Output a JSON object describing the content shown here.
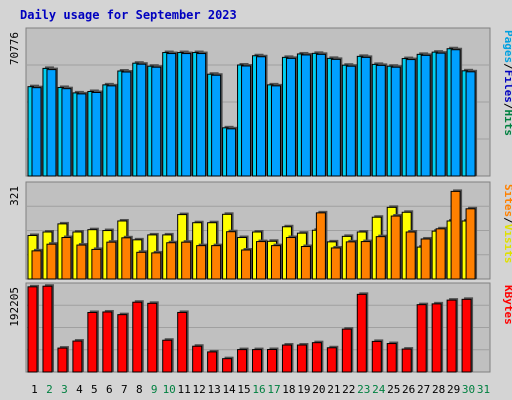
{
  "chart_data": [
    {
      "panel": "pages_files_hits",
      "type": "bar",
      "title": "Daily usage for September 2023",
      "ylabel_max": "70776",
      "side_label": [
        "Pages",
        "/",
        "Files",
        "/",
        "Hits"
      ],
      "side_colors": [
        "#00a0e0",
        "#000000",
        "#0000c0",
        "#000000",
        "#008040"
      ],
      "ylim": [
        0,
        70776
      ],
      "categories": [
        "1",
        "2",
        "3",
        "4",
        "5",
        "6",
        "7",
        "8",
        "9",
        "10",
        "11",
        "12",
        "13",
        "14",
        "15",
        "16",
        "17",
        "18",
        "19",
        "20",
        "21",
        "22",
        "23",
        "24",
        "25",
        "26",
        "27",
        "28",
        "29",
        "30",
        "31"
      ],
      "series": [
        {
          "key": "hits",
          "color": "#00d0f0",
          "values": [
            44500,
            53600,
            44100,
            41400,
            42100,
            45400,
            52300,
            56200,
            54700,
            61500,
            61500,
            61500,
            50700,
            24000,
            55300,
            59900,
            45400,
            59100,
            60800,
            61100,
            58600,
            55200,
            59600,
            55600,
            54700,
            58500,
            60600,
            61700,
            63400,
            52400,
            null
          ]
        },
        {
          "key": "files",
          "color": "#00a0ff",
          "values": [
            44000,
            53000,
            43500,
            40900,
            41600,
            44900,
            51800,
            55700,
            54200,
            61000,
            61000,
            61000,
            50200,
            23500,
            54800,
            59400,
            44900,
            58600,
            60300,
            60600,
            58100,
            54700,
            59100,
            55100,
            54200,
            58000,
            60100,
            61200,
            62900,
            51900,
            null
          ]
        }
      ]
    },
    {
      "panel": "sites_visits",
      "type": "bar",
      "ylabel_max": "321",
      "side_label": [
        "Sites",
        "/",
        "Visits"
      ],
      "side_colors": [
        "#ff8000",
        "#000000",
        "#e0e000"
      ],
      "ylim": [
        0,
        321
      ],
      "series": [
        {
          "key": "visits",
          "color": "#ffff00",
          "values": [
            150,
            162,
            190,
            162,
            170,
            167,
            200,
            135,
            152,
            152,
            222,
            194,
            194,
            223,
            143,
            162,
            130,
            180,
            158,
            168,
            128,
            147,
            162,
            213,
            247,
            230,
            110,
            165,
            200,
            200,
            null
          ]
        },
        {
          "key": "sites",
          "color": "#ff8000",
          "values": [
            97,
            120,
            143,
            117,
            102,
            127,
            142,
            92,
            90,
            125,
            127,
            115,
            115,
            163,
            100,
            129,
            115,
            143,
            112,
            228,
            107,
            128,
            129,
            146,
            217,
            162,
            138,
            173,
            302,
            242,
            null
          ]
        }
      ]
    },
    {
      "panel": "kbytes",
      "type": "bar",
      "ylabel_max": "192205",
      "side_label": [
        "KBytes"
      ],
      "side_colors": [
        "#ff0000"
      ],
      "ylim": [
        0,
        192205
      ],
      "series": [
        {
          "key": "kbytes",
          "color": "#ff0000",
          "values": [
            191600,
            193000,
            53800,
            69600,
            133900,
            135000,
            129000,
            157000,
            154500,
            71500,
            134000,
            58000,
            45200,
            30000,
            50400,
            50400,
            50600,
            60700,
            60700,
            66000,
            54500,
            96500,
            174700,
            68800,
            64000,
            51600,
            151500,
            153300,
            161700,
            163500,
            null
          ]
        }
      ]
    }
  ],
  "x_label_colors": {
    "weekday": "#000000",
    "weekend": "#008040"
  },
  "weekend_days": [
    "2",
    "3",
    "9",
    "10",
    "16",
    "17",
    "23",
    "24",
    "30",
    "31"
  ],
  "colors": {
    "panel_bg": "#c0c0c0",
    "frame_bg": "#d8d8d8",
    "grid": "#a0a0a0"
  }
}
